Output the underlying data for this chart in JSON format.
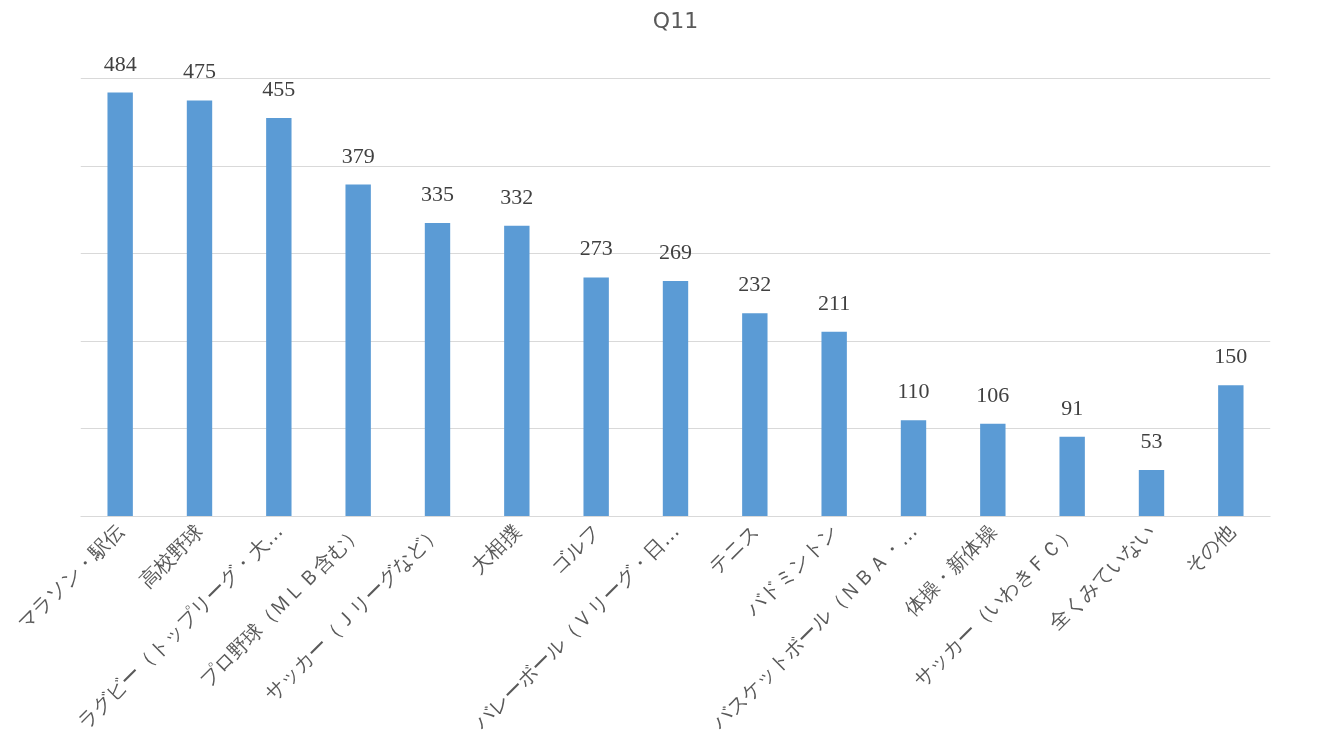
{
  "chart_data": {
    "type": "bar",
    "title": "Q11",
    "categories": [
      "マラソン・駅伝",
      "高校野球",
      "ラグビー（トップリーグ・大…",
      "プロ野球（ＭＬＢ含む）",
      "サッカー（Ｊリーグなど）",
      "大相撲",
      "ゴルフ",
      "バレーボール（Ｖリーグ・日…",
      "テニス",
      "バドミントン",
      "バスケットボール（ＮＢＡ・…",
      "体操・新体操",
      "サッカー（いわきＦＣ）",
      "全くみていない",
      "その他"
    ],
    "values": [
      484,
      475,
      455,
      379,
      335,
      332,
      273,
      269,
      232,
      211,
      110,
      106,
      91,
      53,
      150
    ],
    "color": "#5b9bd5",
    "grid": "y",
    "tick_labels": "x",
    "data_labels": true
  }
}
